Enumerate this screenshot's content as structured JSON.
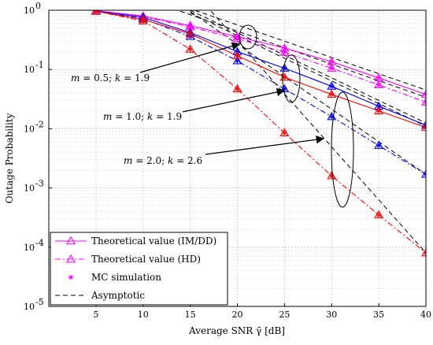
{
  "chart_data": {
    "type": "line",
    "xlabel": "Average SNR γ̄ [dB]",
    "ylabel": "Outage Probability",
    "xlim": [
      0,
      40
    ],
    "ylim": [
      1e-05,
      1
    ],
    "yscale": "log",
    "grid": true,
    "x_ticks": [
      5,
      10,
      15,
      20,
      25,
      30,
      35,
      40
    ],
    "y_ticks": [
      {
        "value": 1,
        "base": "10",
        "exp": "0"
      },
      {
        "value": 0.1,
        "base": "10",
        "exp": "-1"
      },
      {
        "value": 0.01,
        "base": "10",
        "exp": "-2"
      },
      {
        "value": 0.001,
        "base": "10",
        "exp": "-3"
      },
      {
        "value": 0.0001,
        "base": "10",
        "exp": "-4"
      },
      {
        "value": 1e-05,
        "base": "10",
        "exp": "-5"
      }
    ],
    "x": [
      5,
      10,
      15,
      20,
      25,
      30,
      35,
      40
    ],
    "series": [
      {
        "kind": "im",
        "color": "#ff00ff",
        "dash": "solid",
        "values": [
          0.98,
          0.8,
          0.55,
          0.36,
          0.23,
          0.135,
          0.072,
          0.038
        ]
      },
      {
        "kind": "hd",
        "color": "#ff00ff",
        "dash": "dashdot",
        "values": [
          0.98,
          0.78,
          0.52,
          0.33,
          0.195,
          0.105,
          0.055,
          0.028
        ]
      },
      {
        "kind": "im",
        "color": "#0000ff",
        "dash": "solid",
        "values": [
          0.97,
          0.76,
          0.42,
          0.2,
          0.105,
          0.052,
          0.024,
          0.0115
        ]
      },
      {
        "kind": "hd",
        "color": "#0000ff",
        "dash": "dashdot",
        "values": [
          0.97,
          0.72,
          0.36,
          0.14,
          0.047,
          0.016,
          0.0052,
          0.0017
        ]
      },
      {
        "kind": "im",
        "color": "#ff0000",
        "dash": "solid",
        "values": [
          0.96,
          0.7,
          0.4,
          0.17,
          0.074,
          0.038,
          0.02,
          0.0105
        ]
      },
      {
        "kind": "hd",
        "color": "#ff0000",
        "dash": "dashdot",
        "values": [
          0.96,
          0.66,
          0.22,
          0.047,
          0.0085,
          0.0016,
          0.00035,
          8e-05
        ]
      }
    ],
    "asymptotic": [
      {
        "x": [
          10,
          40
        ],
        "values": [
          2.0,
          0.045
        ]
      },
      {
        "x": [
          10,
          40
        ],
        "values": [
          1.6,
          0.034
        ]
      },
      {
        "x": [
          15,
          40
        ],
        "values": [
          1.0,
          0.0125
        ]
      },
      {
        "x": [
          15,
          40
        ],
        "values": [
          0.95,
          0.0017
        ]
      },
      {
        "x": [
          15,
          40
        ],
        "values": [
          0.9,
          0.011
        ]
      },
      {
        "x": [
          15,
          40
        ],
        "values": [
          2.4,
          8e-05
        ]
      }
    ],
    "annotations": [
      {
        "id": "ann-m05",
        "m": "0.5",
        "k": "1.9"
      },
      {
        "id": "ann-m10",
        "m": "1.0",
        "k": "1.9"
      },
      {
        "id": "ann-m20",
        "m": "2.0",
        "k": "2.6"
      }
    ],
    "legend": {
      "placement": "bottom-left",
      "entries": [
        {
          "label": "Theoretical value (IM/DD)",
          "marker": "triangle",
          "dash": "solid"
        },
        {
          "label": "Theoretical value (HD)",
          "marker": "triangle",
          "dash": "dashdot"
        },
        {
          "label": "MC simulation",
          "marker": "asterisk",
          "dash": "none"
        },
        {
          "label": "Asymptotic",
          "marker": "none",
          "dash": "dashed"
        }
      ]
    }
  }
}
